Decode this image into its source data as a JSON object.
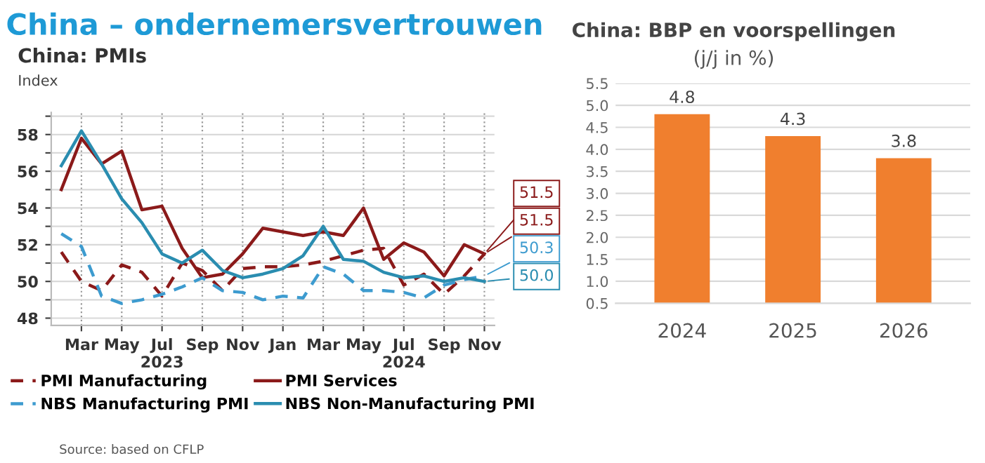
{
  "chart_data": [
    {
      "type": "line",
      "title": "China: PMIs",
      "ylabel": "Index",
      "annotations": [
        "China – ondernemersvertrouwen",
        "Source: based on CFLP"
      ],
      "categories": [
        null,
        "Mar",
        null,
        "May",
        null,
        "Jul\n2023",
        null,
        "Sep",
        null,
        "Nov",
        null,
        "Jan",
        null,
        "Mar",
        null,
        "May",
        null,
        "Jul\n2024",
        null,
        "Sep",
        null,
        "Nov"
      ],
      "series": [
        {
          "name": "PMI Manufacturing",
          "color": "#8b1a1a",
          "line_style": "dashed",
          "values": [
            51.6,
            50.0,
            49.5,
            50.9,
            50.5,
            49.2,
            51.0,
            50.6,
            49.5,
            50.7,
            50.8,
            50.8,
            50.9,
            51.1,
            51.4,
            51.7,
            51.8,
            49.8,
            50.4,
            49.3,
            50.3,
            51.5
          ],
          "value_labels": [
            null,
            null,
            null,
            null,
            null,
            null,
            null,
            null,
            null,
            null,
            null,
            null,
            null,
            null,
            null,
            null,
            null,
            null,
            null,
            null,
            null,
            "51.5"
          ]
        },
        {
          "name": "PMI Services",
          "color": "#8b1a1a",
          "line_style": "solid",
          "values": [
            55.0,
            57.8,
            56.4,
            57.1,
            53.9,
            54.1,
            51.8,
            50.2,
            50.4,
            51.5,
            52.9,
            52.7,
            52.5,
            52.7,
            52.5,
            54.0,
            51.2,
            52.1,
            51.6,
            50.3,
            52.0,
            51.5
          ],
          "value_labels": [
            null,
            null,
            null,
            null,
            null,
            null,
            null,
            null,
            null,
            null,
            null,
            null,
            null,
            null,
            null,
            null,
            null,
            null,
            null,
            null,
            null,
            "51.5"
          ]
        },
        {
          "name": "NBS Manufacturing PMI",
          "color": "#3d9bcf",
          "line_style": "dashed",
          "values": [
            52.6,
            51.9,
            49.2,
            48.8,
            49.0,
            49.3,
            49.7,
            50.2,
            49.5,
            49.4,
            49.0,
            49.2,
            49.1,
            50.8,
            50.4,
            49.5,
            49.5,
            49.4,
            49.1,
            49.8,
            50.1,
            50.3
          ],
          "value_labels": [
            null,
            null,
            null,
            null,
            null,
            null,
            null,
            null,
            null,
            null,
            null,
            null,
            null,
            null,
            null,
            null,
            null,
            null,
            null,
            null,
            null,
            "50.3"
          ]
        },
        {
          "name": "NBS Non-Manufacturing PMI",
          "color": "#2a8db0",
          "line_style": "solid",
          "values": [
            56.3,
            58.2,
            56.4,
            54.5,
            53.2,
            51.5,
            51.0,
            51.7,
            50.6,
            50.2,
            50.4,
            50.7,
            51.4,
            53.0,
            51.2,
            51.1,
            50.5,
            50.2,
            50.3,
            50.0,
            50.2,
            50.0
          ],
          "value_labels": [
            null,
            null,
            null,
            null,
            null,
            null,
            null,
            null,
            null,
            null,
            null,
            null,
            null,
            null,
            null,
            null,
            null,
            null,
            null,
            null,
            null,
            "50.0"
          ]
        }
      ],
      "ylim": [
        47.6,
        59.2
      ],
      "yticks": [
        48,
        {
          "value": 49,
          "label": null
        },
        50,
        {
          "value": 51,
          "label": null
        },
        52,
        {
          "value": 53,
          "label": null
        },
        54,
        {
          "value": 55,
          "label": null
        },
        56,
        {
          "value": 57,
          "label": null
        },
        58,
        {
          "value": 59,
          "label": null
        }
      ],
      "grid": true,
      "legend": "bottom"
    },
    {
      "type": "bar",
      "title": "China: BBP en voorspellingen",
      "subtitle": "(j/j in %)",
      "categories": [
        "2024",
        "2025",
        "2026"
      ],
      "values": [
        4.8,
        4.3,
        3.8
      ],
      "color": "#f07f2e",
      "ylim": [
        0.5,
        5.5
      ],
      "yticks": [
        0.5,
        {
          "value": 1,
          "label": "1.0"
        },
        1.5,
        {
          "value": 2,
          "label": "2.0"
        },
        2.5,
        {
          "value": 3,
          "label": "3.0"
        },
        3.5,
        {
          "value": 4,
          "label": "4.0"
        },
        4.5,
        {
          "value": 5,
          "label": "5.0"
        },
        5.5
      ],
      "grid": "y",
      "data_labels": true
    }
  ]
}
